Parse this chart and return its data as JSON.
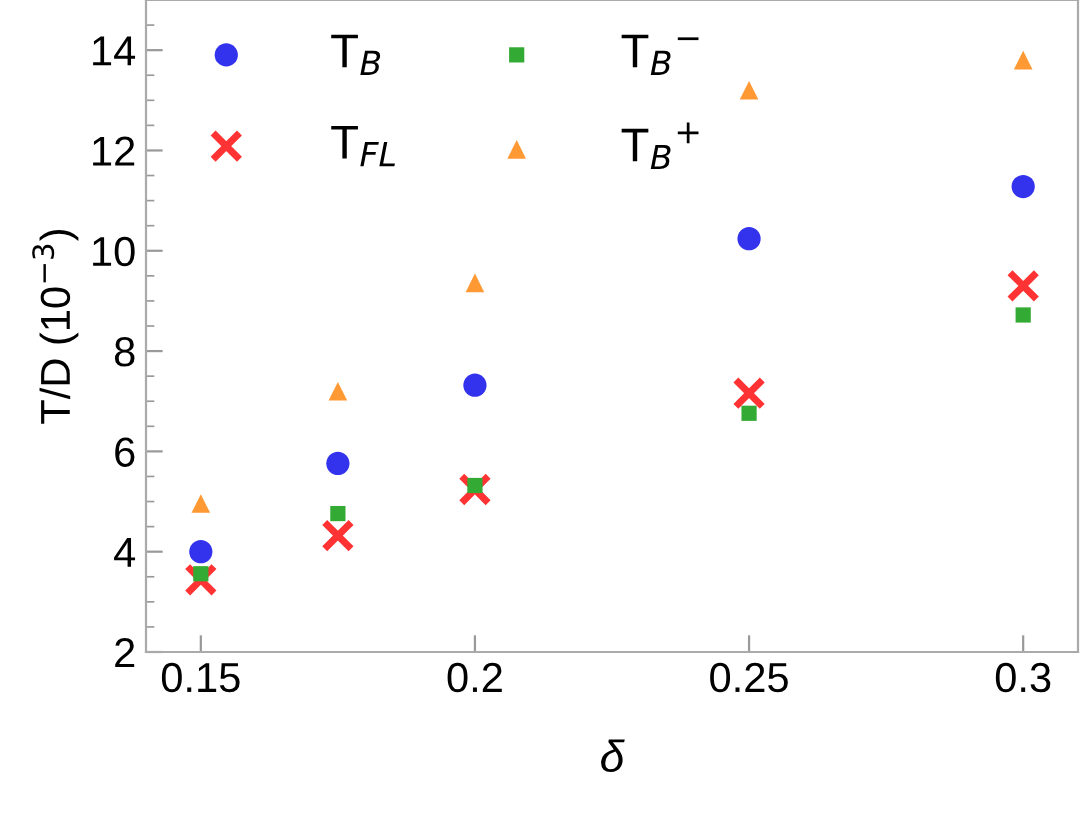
{
  "chart_data": {
    "type": "scatter",
    "xlabel": "δ",
    "ylabel": "T/D (10$^{−3}$)",
    "x": [
      0.15,
      0.175,
      0.2,
      0.25,
      0.3
    ],
    "series": [
      {
        "name": "T$_{B}$",
        "color": "#3333ee",
        "marker": "circle",
        "values": [
          4.0,
          5.76,
          7.32,
          10.24,
          11.28
        ]
      },
      {
        "name": "T$_{FL}$",
        "color": "#ff3333",
        "marker": "cross",
        "values": [
          3.44,
          4.32,
          5.24,
          7.16,
          9.3
        ]
      },
      {
        "name": "T$_{B}$$^{−}$",
        "color": "#33aa33",
        "marker": "square",
        "values": [
          3.56,
          4.76,
          5.32,
          6.76,
          8.72
        ]
      },
      {
        "name": "T$_{B}$$^{+}$",
        "color": "#ff9933",
        "marker": "triangle",
        "values": [
          4.96,
          7.2,
          9.36,
          13.2,
          13.8
        ]
      }
    ],
    "xlim": [
      0.14,
      0.31
    ],
    "xticks": [
      0.15,
      {
        "value": 0.2,
        "label": "0.2"
      },
      0.25,
      {
        "value": 0.3,
        "label": "0.3"
      }
    ],
    "ylim": [
      2,
      15
    ],
    "yticks": [
      2,
      4,
      6,
      8,
      10,
      12,
      14
    ],
    "legend": "top left"
  }
}
